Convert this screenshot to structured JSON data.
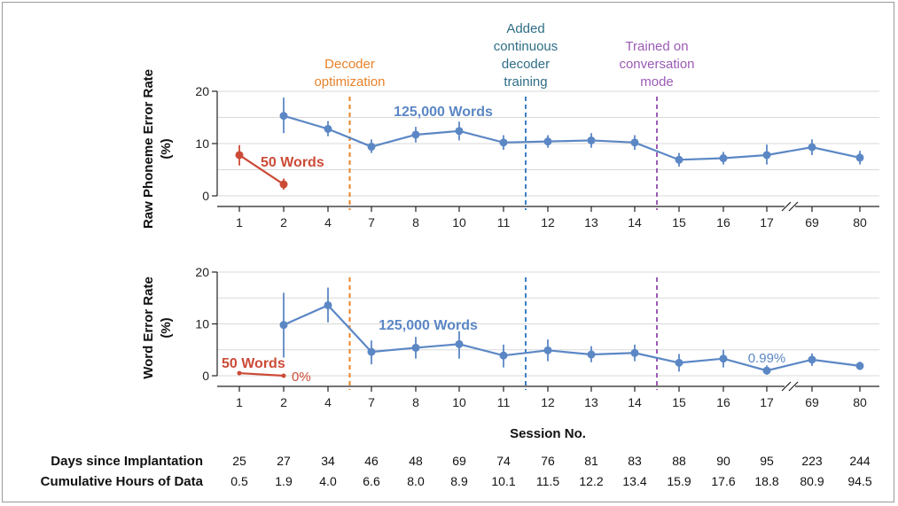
{
  "colors": {
    "blue": "#5b87c5",
    "red": "#cc4b37",
    "orange": "#e8822a",
    "teal_blue": "#3d7fc4",
    "purple": "#9b5bb5",
    "teal_text": "#2f6e86",
    "grid": "#d9d9d9",
    "axis": "#222222"
  },
  "chart_data": [
    {
      "type": "line",
      "ylabel": [
        "Raw Phoneme Error Rate",
        "(%)"
      ],
      "ylim": [
        0,
        20
      ],
      "yticks": [
        "0",
        "10",
        "20"
      ],
      "grid": true,
      "sessions": [
        "1",
        "2",
        "4",
        "7",
        "8",
        "10",
        "11",
        "12",
        "13",
        "14",
        "15",
        "16",
        "17",
        "69",
        "80"
      ],
      "axis_break_between": [
        "17",
        "69"
      ],
      "series": [
        {
          "name": "50 Words",
          "color": "red",
          "x": [
            "1",
            "2"
          ],
          "values": [
            7.8,
            2.2
          ],
          "err_low": [
            5.8,
            1.2
          ],
          "err_high": [
            9.7,
            3.3
          ]
        },
        {
          "name": "125,000 Words",
          "color": "blue",
          "x": [
            "2",
            "4",
            "7",
            "8",
            "10",
            "11",
            "12",
            "13",
            "14",
            "15",
            "16",
            "17",
            "69",
            "80"
          ],
          "values": [
            15.3,
            12.8,
            9.4,
            11.7,
            12.4,
            10.2,
            10.4,
            10.6,
            10.2,
            6.9,
            7.2,
            7.8,
            9.3,
            7.3
          ],
          "err_low": [
            12.0,
            11.4,
            8.2,
            10.2,
            10.6,
            8.8,
            9.2,
            9.2,
            8.8,
            5.6,
            6.0,
            6.0,
            7.8,
            6.0
          ],
          "err_high": [
            18.8,
            14.3,
            10.8,
            13.2,
            14.2,
            11.6,
            11.6,
            12.0,
            11.6,
            8.2,
            8.4,
            9.8,
            10.8,
            8.6
          ]
        }
      ],
      "events": [
        {
          "after": "4",
          "label": [
            "Decoder",
            "optimization"
          ],
          "color": "orange"
        },
        {
          "after": "11",
          "label": [
            "Added",
            "continuous",
            "decoder",
            "training"
          ],
          "color": "teal_blue"
        },
        {
          "after": "14",
          "label": [
            "Trained on",
            "conversation",
            "mode"
          ],
          "color": "purple"
        }
      ]
    },
    {
      "type": "line",
      "ylabel": [
        "Word Error Rate",
        "(%)"
      ],
      "xlabel": "Session No.",
      "ylim": [
        0,
        20
      ],
      "yticks": [
        "0",
        "10",
        "20"
      ],
      "grid": true,
      "sessions": [
        "1",
        "2",
        "4",
        "7",
        "8",
        "10",
        "11",
        "12",
        "13",
        "14",
        "15",
        "16",
        "17",
        "69",
        "80"
      ],
      "axis_break_between": [
        "17",
        "69"
      ],
      "series": [
        {
          "name": "50 Words",
          "color": "red",
          "x": [
            "1",
            "2"
          ],
          "values": [
            0.5,
            0
          ],
          "err_low": [
            0.5,
            0
          ],
          "err_high": [
            0.5,
            0
          ],
          "annotation": {
            "x": "2",
            "text": "0%"
          }
        },
        {
          "name": "125,000 Words",
          "color": "blue",
          "x": [
            "2",
            "4",
            "7",
            "8",
            "10",
            "11",
            "12",
            "13",
            "14",
            "15",
            "16",
            "17",
            "69",
            "80"
          ],
          "values": [
            9.8,
            13.6,
            4.6,
            5.4,
            6.1,
            3.9,
            4.9,
            4.1,
            4.4,
            2.5,
            3.3,
            0.99,
            3.1,
            1.9
          ],
          "err_low": [
            3.5,
            10.3,
            2.2,
            3.3,
            3.3,
            1.6,
            2.8,
            2.6,
            2.8,
            0.8,
            1.6,
            0.2,
            1.9,
            1.1
          ],
          "err_high": [
            16.0,
            17.0,
            6.8,
            7.5,
            8.6,
            6.0,
            7.0,
            5.7,
            6.0,
            4.2,
            5.0,
            2.0,
            4.3,
            2.7
          ],
          "annotation": {
            "x": "17",
            "text": "0.99%"
          }
        }
      ],
      "events": [
        {
          "after": "4",
          "color": "orange"
        },
        {
          "after": "11",
          "color": "teal_blue"
        },
        {
          "after": "14",
          "color": "purple"
        }
      ]
    }
  ],
  "table": {
    "rows": [
      {
        "label": "Days since Implantation",
        "values": [
          "25",
          "27",
          "34",
          "46",
          "48",
          "69",
          "74",
          "76",
          "81",
          "83",
          "88",
          "90",
          "95",
          "223",
          "244"
        ]
      },
      {
        "label": "Cumulative Hours of Data",
        "values": [
          "0.5",
          "1.9",
          "4.0",
          "6.6",
          "8.0",
          "8.9",
          "10.1",
          "11.5",
          "12.2",
          "13.4",
          "15.9",
          "17.6",
          "18.8",
          "80.9",
          "94.5"
        ]
      }
    ]
  }
}
